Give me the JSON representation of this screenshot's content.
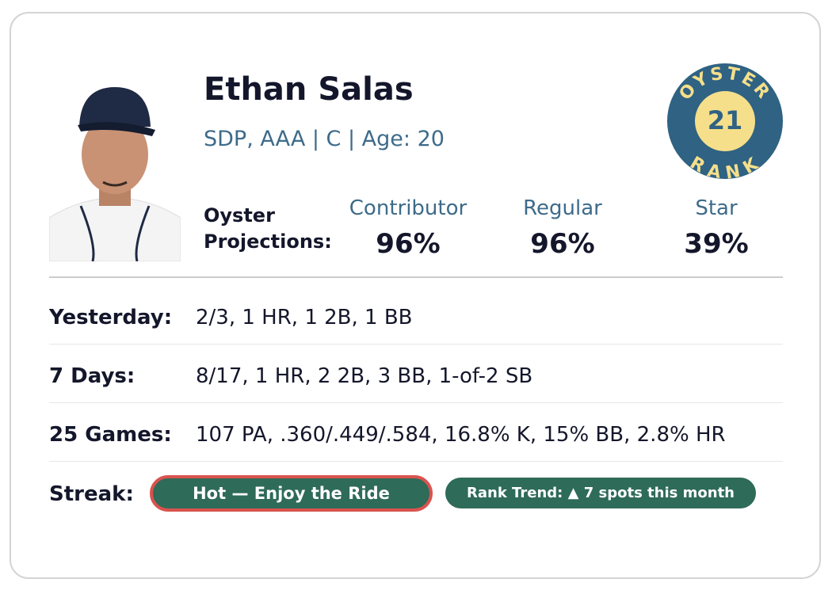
{
  "player": {
    "name": "Ethan Salas",
    "subtitle": "SDP, AAA | C | Age: 20"
  },
  "badge": {
    "top": "OYSTER",
    "bottom": "RANK",
    "rank": "21"
  },
  "projections": {
    "label": "Oyster Projections:",
    "columns": [
      {
        "label": "Contributor",
        "value": "96%"
      },
      {
        "label": "Regular",
        "value": "96%"
      },
      {
        "label": "Star",
        "value": "39%"
      }
    ]
  },
  "stats": [
    {
      "label": "Yesterday:",
      "value": "2/3, 1 HR, 1 2B, 1 BB"
    },
    {
      "label": "7 Days:",
      "value": "8/17, 1 HR, 2 2B, 3 BB, 1-of-2 SB"
    },
    {
      "label": "25 Games:",
      "value": "107 PA, .360/.449/.584, 16.8% K, 15% BB, 2.8% HR"
    }
  ],
  "streak": {
    "label": "Streak:",
    "status": "Hot — Enjoy the Ride",
    "trend": "Rank Trend: ▲ 7 spots this month"
  }
}
